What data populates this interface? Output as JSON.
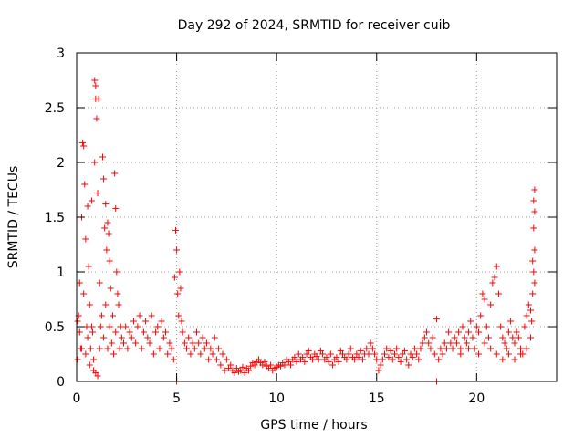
{
  "chart_data": {
    "type": "scatter",
    "title": "Day 292 of 2024, SRMTID for receiver cuib",
    "xlabel": "GPS time / hours",
    "ylabel": "SRMTID / TECUs",
    "xlim": [
      0,
      24
    ],
    "ylim": [
      0,
      3
    ],
    "xticks": [
      0,
      5,
      10,
      15,
      20
    ],
    "xtick_labels": [
      "0",
      "5",
      "10",
      "15",
      "20"
    ],
    "yticks": [
      0,
      0.5,
      1,
      1.5,
      2,
      2.5,
      3
    ],
    "ytick_labels": [
      "0",
      "0.5",
      "1",
      "1.5",
      "2",
      "2.5",
      "3"
    ],
    "grid": true,
    "marker": "+",
    "color": "#ff0000",
    "series": [
      {
        "name": "SRMTID",
        "points": [
          [
            0.05,
            0.55
          ],
          [
            0.1,
            0.6
          ],
          [
            0.15,
            0.9
          ],
          [
            0.2,
            0.3
          ],
          [
            0.25,
            1.5
          ],
          [
            0.3,
            2.18
          ],
          [
            0.35,
            2.15
          ],
          [
            0.4,
            1.8
          ],
          [
            0.45,
            1.3
          ],
          [
            0.5,
            0.5
          ],
          [
            0.55,
            1.6
          ],
          [
            0.6,
            1.05
          ],
          [
            0.65,
            0.7
          ],
          [
            0.7,
            0.3
          ],
          [
            0.75,
            1.65
          ],
          [
            0.8,
            0.45
          ],
          [
            0.85,
            0.2
          ],
          [
            0.9,
            2.0
          ],
          [
            0.95,
            2.58
          ],
          [
            0.9,
            2.75
          ],
          [
            0.95,
            2.7
          ],
          [
            1.0,
            2.4
          ],
          [
            1.05,
            1.72
          ],
          [
            1.1,
            2.58
          ],
          [
            1.15,
            0.9
          ],
          [
            1.2,
            0.5
          ],
          [
            1.3,
            2.05
          ],
          [
            1.35,
            1.85
          ],
          [
            1.4,
            1.4
          ],
          [
            1.45,
            1.62
          ],
          [
            1.5,
            1.2
          ],
          [
            1.55,
            1.45
          ],
          [
            1.6,
            1.35
          ],
          [
            1.65,
            1.1
          ],
          [
            1.7,
            0.85
          ],
          [
            1.8,
            0.6
          ],
          [
            1.9,
            1.9
          ],
          [
            1.95,
            1.58
          ],
          [
            2.0,
            1.0
          ],
          [
            2.1,
            0.7
          ],
          [
            2.2,
            0.5
          ],
          [
            0.05,
            0.2
          ],
          [
            0.15,
            0.45
          ],
          [
            0.25,
            0.3
          ],
          [
            0.35,
            0.8
          ],
          [
            0.45,
            0.25
          ],
          [
            0.55,
            0.4
          ],
          [
            0.65,
            0.15
          ],
          [
            0.75,
            0.5
          ],
          [
            0.85,
            0.1
          ],
          [
            0.95,
            0.08
          ],
          [
            1.05,
            0.05
          ],
          [
            1.15,
            0.3
          ],
          [
            1.25,
            0.6
          ],
          [
            1.35,
            0.4
          ],
          [
            1.45,
            0.7
          ],
          [
            1.55,
            0.3
          ],
          [
            1.65,
            0.5
          ],
          [
            1.75,
            0.35
          ],
          [
            1.85,
            0.25
          ],
          [
            1.95,
            0.45
          ],
          [
            2.05,
            0.8
          ],
          [
            2.15,
            0.3
          ],
          [
            2.25,
            0.4
          ],
          [
            2.35,
            0.35
          ],
          [
            2.45,
            0.5
          ],
          [
            2.55,
            0.3
          ],
          [
            2.65,
            0.45
          ],
          [
            2.75,
            0.4
          ],
          [
            2.85,
            0.55
          ],
          [
            2.95,
            0.35
          ],
          [
            3.05,
            0.5
          ],
          [
            3.15,
            0.6
          ],
          [
            3.25,
            0.3
          ],
          [
            3.35,
            0.45
          ],
          [
            3.45,
            0.55
          ],
          [
            3.55,
            0.4
          ],
          [
            3.65,
            0.35
          ],
          [
            3.75,
            0.6
          ],
          [
            3.85,
            0.25
          ],
          [
            3.95,
            0.45
          ],
          [
            4.05,
            0.5
          ],
          [
            4.15,
            0.3
          ],
          [
            4.25,
            0.55
          ],
          [
            4.35,
            0.4
          ],
          [
            4.45,
            0.45
          ],
          [
            4.55,
            0.25
          ],
          [
            4.65,
            0.35
          ],
          [
            4.75,
            0.3
          ],
          [
            4.85,
            0.2
          ],
          [
            4.95,
            1.38
          ],
          [
            5.0,
            1.2
          ],
          [
            4.9,
            0.95
          ],
          [
            5.05,
            0.8
          ],
          [
            5.0,
            0.0
          ],
          [
            5.1,
            0.6
          ],
          [
            5.15,
            1.0
          ],
          [
            5.2,
            0.85
          ],
          [
            5.25,
            0.55
          ],
          [
            5.3,
            0.45
          ],
          [
            5.4,
            0.35
          ],
          [
            5.5,
            0.3
          ],
          [
            5.6,
            0.4
          ],
          [
            5.7,
            0.25
          ],
          [
            5.8,
            0.35
          ],
          [
            5.9,
            0.3
          ],
          [
            6.0,
            0.45
          ],
          [
            6.1,
            0.35
          ],
          [
            6.2,
            0.25
          ],
          [
            6.3,
            0.4
          ],
          [
            6.4,
            0.3
          ],
          [
            6.5,
            0.35
          ],
          [
            6.6,
            0.2
          ],
          [
            6.7,
            0.3
          ],
          [
            6.8,
            0.25
          ],
          [
            6.9,
            0.4
          ],
          [
            7.0,
            0.2
          ],
          [
            7.1,
            0.3
          ],
          [
            7.2,
            0.15
          ],
          [
            7.3,
            0.25
          ],
          [
            7.4,
            0.1
          ],
          [
            7.5,
            0.2
          ],
          [
            7.6,
            0.12
          ],
          [
            7.7,
            0.15
          ],
          [
            7.8,
            0.1
          ],
          [
            7.9,
            0.08
          ],
          [
            8.0,
            0.12
          ],
          [
            8.1,
            0.09
          ],
          [
            8.2,
            0.1
          ],
          [
            8.3,
            0.13
          ],
          [
            8.4,
            0.08
          ],
          [
            8.5,
            0.12
          ],
          [
            8.6,
            0.1
          ],
          [
            8.7,
            0.14
          ],
          [
            8.8,
            0.17
          ],
          [
            8.9,
            0.15
          ],
          [
            9.0,
            0.18
          ],
          [
            9.1,
            0.2
          ],
          [
            9.2,
            0.17
          ],
          [
            9.3,
            0.15
          ],
          [
            9.4,
            0.18
          ],
          [
            9.5,
            0.14
          ],
          [
            9.6,
            0.12
          ],
          [
            9.7,
            0.15
          ],
          [
            9.8,
            0.1
          ],
          [
            9.9,
            0.12
          ],
          [
            10.0,
            0.13
          ],
          [
            10.1,
            0.15
          ],
          [
            10.2,
            0.14
          ],
          [
            10.3,
            0.17
          ],
          [
            10.4,
            0.15
          ],
          [
            10.5,
            0.2
          ],
          [
            10.6,
            0.18
          ],
          [
            10.7,
            0.15
          ],
          [
            10.8,
            0.2
          ],
          [
            10.9,
            0.22
          ],
          [
            11.0,
            0.18
          ],
          [
            11.1,
            0.25
          ],
          [
            11.2,
            0.2
          ],
          [
            11.3,
            0.22
          ],
          [
            11.4,
            0.18
          ],
          [
            11.5,
            0.25
          ],
          [
            11.6,
            0.28
          ],
          [
            11.7,
            0.22
          ],
          [
            11.8,
            0.2
          ],
          [
            11.9,
            0.25
          ],
          [
            12.0,
            0.23
          ],
          [
            12.1,
            0.2
          ],
          [
            12.2,
            0.28
          ],
          [
            12.3,
            0.25
          ],
          [
            12.4,
            0.2
          ],
          [
            12.5,
            0.22
          ],
          [
            12.6,
            0.18
          ],
          [
            12.7,
            0.25
          ],
          [
            12.8,
            0.15
          ],
          [
            12.9,
            0.2
          ],
          [
            13.0,
            0.22
          ],
          [
            13.1,
            0.18
          ],
          [
            13.2,
            0.28
          ],
          [
            13.3,
            0.25
          ],
          [
            13.4,
            0.22
          ],
          [
            13.5,
            0.2
          ],
          [
            13.6,
            0.25
          ],
          [
            13.7,
            0.3
          ],
          [
            13.8,
            0.22
          ],
          [
            13.9,
            0.2
          ],
          [
            14.0,
            0.25
          ],
          [
            14.1,
            0.22
          ],
          [
            14.2,
            0.28
          ],
          [
            14.3,
            0.2
          ],
          [
            14.4,
            0.25
          ],
          [
            14.5,
            0.3
          ],
          [
            14.6,
            0.25
          ],
          [
            14.7,
            0.35
          ],
          [
            14.8,
            0.3
          ],
          [
            14.9,
            0.25
          ],
          [
            15.0,
            0.2
          ],
          [
            15.1,
            0.1
          ],
          [
            15.2,
            0.15
          ],
          [
            15.3,
            0.2
          ],
          [
            15.4,
            0.25
          ],
          [
            15.5,
            0.3
          ],
          [
            15.6,
            0.22
          ],
          [
            15.7,
            0.28
          ],
          [
            15.8,
            0.2
          ],
          [
            15.9,
            0.25
          ],
          [
            16.0,
            0.3
          ],
          [
            16.1,
            0.22
          ],
          [
            16.2,
            0.18
          ],
          [
            16.3,
            0.25
          ],
          [
            16.4,
            0.28
          ],
          [
            16.5,
            0.2
          ],
          [
            16.6,
            0.15
          ],
          [
            16.7,
            0.25
          ],
          [
            16.8,
            0.22
          ],
          [
            16.9,
            0.3
          ],
          [
            17.0,
            0.25
          ],
          [
            17.1,
            0.2
          ],
          [
            17.2,
            0.3
          ],
          [
            17.3,
            0.35
          ],
          [
            17.4,
            0.4
          ],
          [
            17.5,
            0.45
          ],
          [
            17.6,
            0.35
          ],
          [
            17.7,
            0.3
          ],
          [
            17.8,
            0.4
          ],
          [
            17.9,
            0.25
          ],
          [
            18.0,
            0.57
          ],
          [
            18.0,
            0.0
          ],
          [
            18.1,
            0.2
          ],
          [
            18.2,
            0.3
          ],
          [
            18.3,
            0.25
          ],
          [
            18.4,
            0.35
          ],
          [
            18.5,
            0.3
          ],
          [
            18.6,
            0.45
          ],
          [
            18.7,
            0.35
          ],
          [
            18.8,
            0.3
          ],
          [
            18.9,
            0.4
          ],
          [
            19.0,
            0.35
          ],
          [
            19.1,
            0.45
          ],
          [
            19.2,
            0.3
          ],
          [
            19.3,
            0.5
          ],
          [
            19.4,
            0.4
          ],
          [
            19.5,
            0.35
          ],
          [
            19.6,
            0.45
          ],
          [
            19.7,
            0.55
          ],
          [
            19.8,
            0.4
          ],
          [
            19.9,
            0.3
          ],
          [
            20.0,
            0.5
          ],
          [
            20.1,
            0.45
          ],
          [
            20.2,
            0.6
          ],
          [
            20.3,
            0.8
          ],
          [
            20.4,
            0.75
          ],
          [
            20.5,
            0.5
          ],
          [
            20.6,
            0.4
          ],
          [
            20.7,
            0.7
          ],
          [
            20.8,
            0.9
          ],
          [
            20.9,
            0.95
          ],
          [
            21.0,
            1.05
          ],
          [
            21.1,
            0.8
          ],
          [
            21.2,
            0.5
          ],
          [
            21.3,
            0.4
          ],
          [
            21.4,
            0.35
          ],
          [
            21.5,
            0.3
          ],
          [
            21.6,
            0.45
          ],
          [
            21.7,
            0.55
          ],
          [
            21.8,
            0.4
          ],
          [
            21.9,
            0.35
          ],
          [
            22.0,
            0.45
          ],
          [
            22.1,
            0.4
          ],
          [
            22.2,
            0.3
          ],
          [
            22.3,
            0.25
          ],
          [
            22.4,
            0.5
          ],
          [
            22.5,
            0.6
          ],
          [
            22.6,
            0.7
          ],
          [
            22.7,
            0.65
          ],
          [
            22.75,
            0.55
          ],
          [
            22.8,
            0.8
          ],
          [
            22.85,
            1.0
          ],
          [
            22.9,
            1.2
          ],
          [
            22.85,
            1.4
          ],
          [
            22.9,
            1.55
          ],
          [
            22.85,
            1.65
          ],
          [
            22.9,
            1.75
          ],
          [
            22.8,
            1.1
          ],
          [
            22.9,
            0.9
          ],
          [
            19.2,
            0.25
          ],
          [
            19.6,
            0.3
          ],
          [
            20.1,
            0.25
          ],
          [
            20.4,
            0.35
          ],
          [
            20.7,
            0.3
          ],
          [
            21.0,
            0.25
          ],
          [
            21.3,
            0.2
          ],
          [
            21.6,
            0.25
          ],
          [
            21.9,
            0.2
          ],
          [
            22.2,
            0.25
          ],
          [
            22.5,
            0.3
          ],
          [
            22.7,
            0.4
          ]
        ]
      }
    ]
  }
}
